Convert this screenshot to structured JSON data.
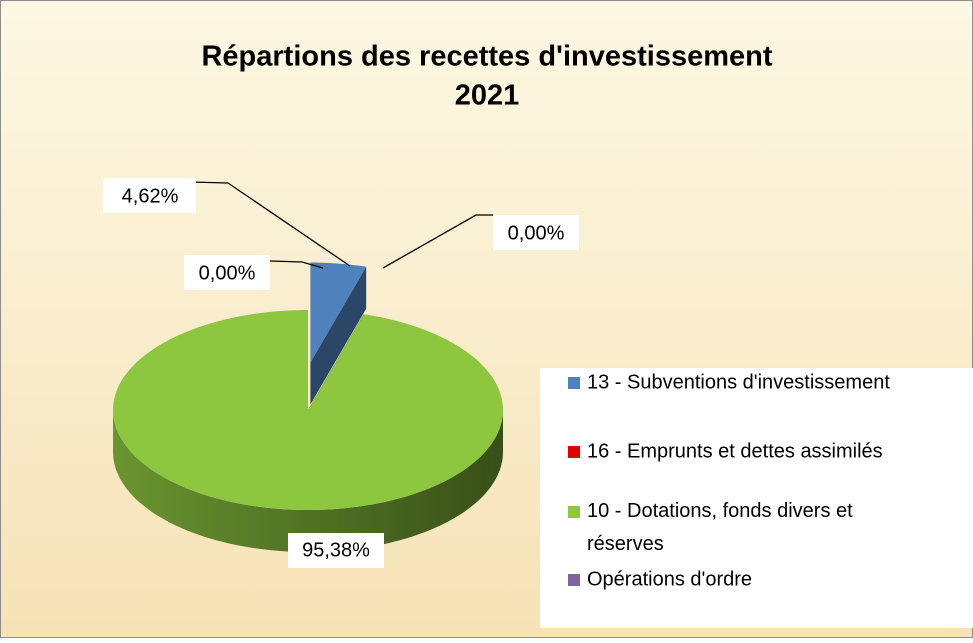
{
  "chart_data": {
    "type": "pie",
    "title": "Répartions des recettes d'investissement",
    "subtitle": "2021",
    "categories": [
      "13 - Subventions d'investissement",
      "16 - Emprunts et dettes assimilés",
      "10 - Dotations, fonds divers et réserves",
      "Opérations d'ordre"
    ],
    "values": [
      4.62,
      0.0,
      95.38,
      0.0
    ],
    "value_labels": [
      "4,62%",
      "0,00%",
      "95,38%",
      "0,00%"
    ],
    "colors": [
      "#4f81bd",
      "#e00000",
      "#8dc63f",
      "#8064a2"
    ],
    "legend": "right"
  }
}
